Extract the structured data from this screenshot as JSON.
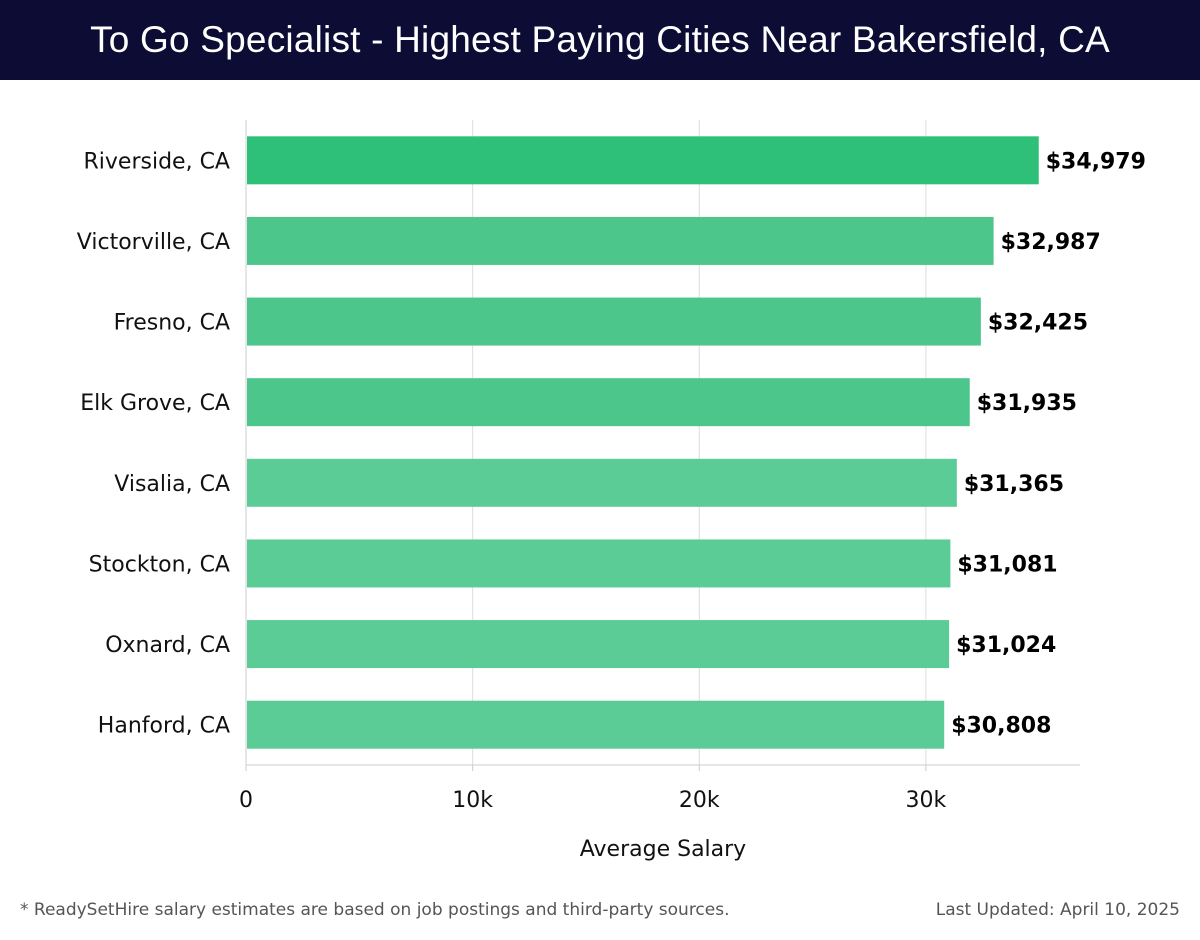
{
  "header": {
    "title": "To Go Specialist - Highest Paying Cities Near Bakersfield, CA"
  },
  "chart_data": {
    "type": "bar",
    "orientation": "horizontal",
    "title": "To Go Specialist - Highest Paying Cities Near Bakersfield, CA",
    "xlabel": "Average Salary",
    "ylabel": "",
    "categories": [
      "Riverside, CA",
      "Victorville, CA",
      "Fresno, CA",
      "Elk Grove, CA",
      "Visalia, CA",
      "Stockton, CA",
      "Oxnard, CA",
      "Hanford, CA"
    ],
    "values": [
      34979,
      32987,
      32425,
      31935,
      31365,
      31081,
      31024,
      30808
    ],
    "value_labels": [
      "$34,979",
      "$32,987",
      "$32,425",
      "$31,935",
      "$31,365",
      "$31,081",
      "$31,024",
      "$30,808"
    ],
    "xlim": [
      0,
      36800
    ],
    "xticks": [
      0,
      10000,
      20000,
      30000
    ],
    "xtick_labels": [
      "0",
      "10k",
      "20k",
      "30k"
    ],
    "grid": true,
    "colors": {
      "top_bar": "#2ebf78",
      "bar": "#4cc68a",
      "bar_light": "#5ccc96",
      "grid": "#dddddd",
      "axis": "#cccccc"
    }
  },
  "footer": {
    "note": "* ReadySetHire salary estimates are based on job postings and third-party sources.",
    "updated": "Last Updated: April 10, 2025"
  }
}
